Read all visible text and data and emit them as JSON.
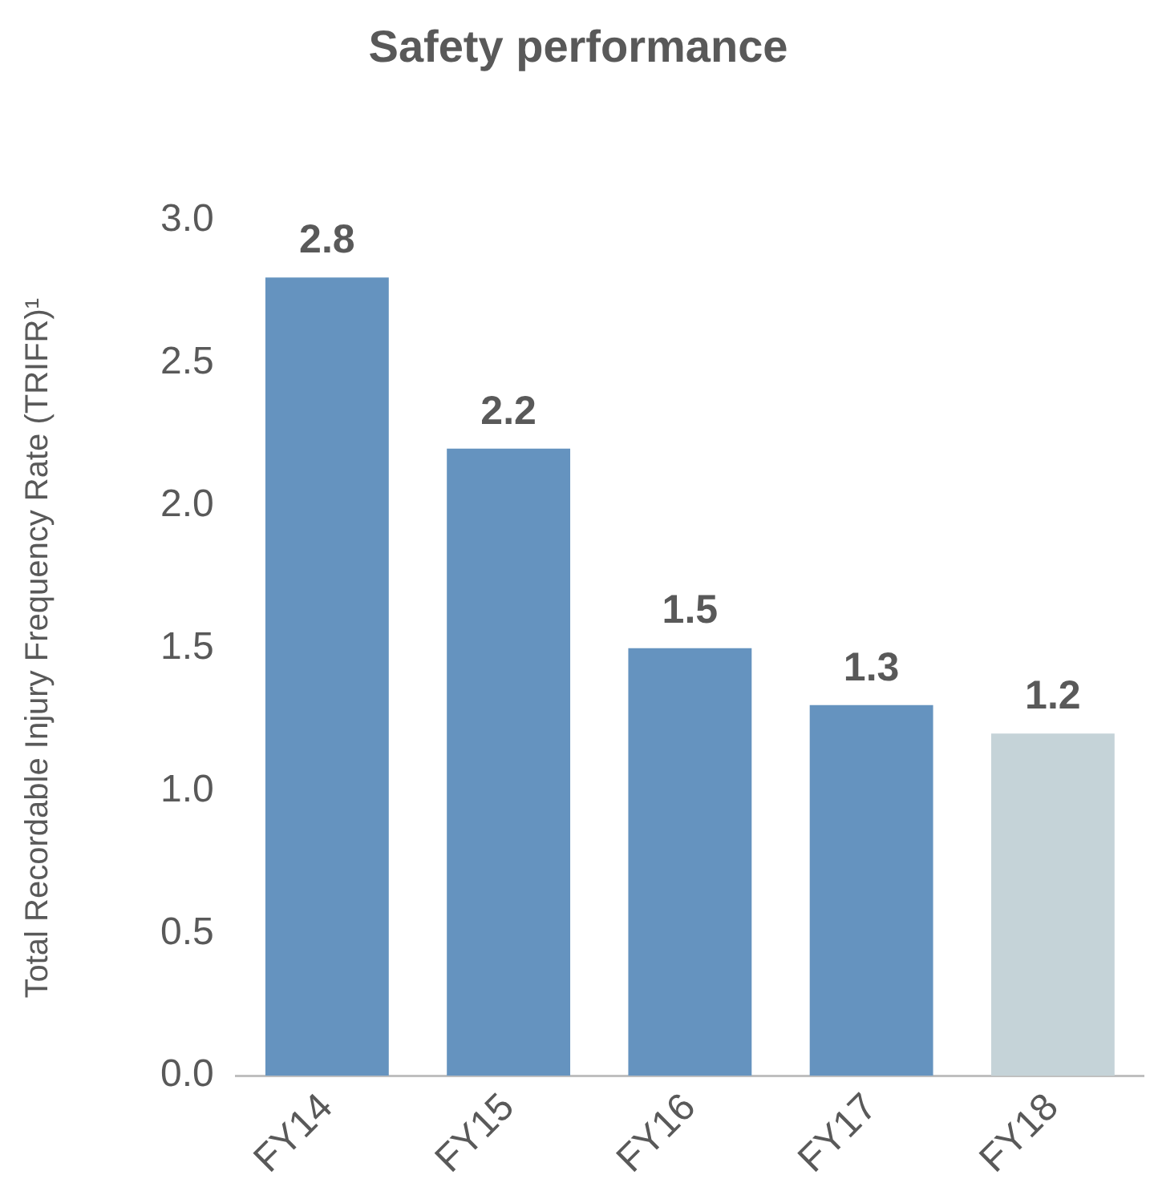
{
  "chart_data": {
    "type": "bar",
    "title": "Safety performance",
    "ylabel": "Total Recordable Injury Frequency Rate (TRIFR)¹",
    "categories": [
      "FY14",
      "FY15",
      "FY16",
      "FY17",
      "FY18"
    ],
    "values": [
      2.8,
      2.2,
      1.5,
      1.3,
      1.2
    ],
    "colors": [
      "#6593bf",
      "#6593bf",
      "#6593bf",
      "#6593bf",
      "#c5d3d8"
    ],
    "ylim": [
      0,
      3
    ],
    "yticks": [
      {
        "value": 0,
        "label": "0.0"
      },
      {
        "value": 0.5,
        "label": "0.5"
      },
      {
        "value": 1,
        "label": "1.0"
      },
      {
        "value": 1.5,
        "label": "1.5"
      },
      {
        "value": 2,
        "label": "2.0"
      },
      {
        "value": 2.5,
        "label": "2.5"
      },
      {
        "value": 3,
        "label": "3.0"
      }
    ],
    "grid": false,
    "legend": false,
    "data_labels": true
  }
}
